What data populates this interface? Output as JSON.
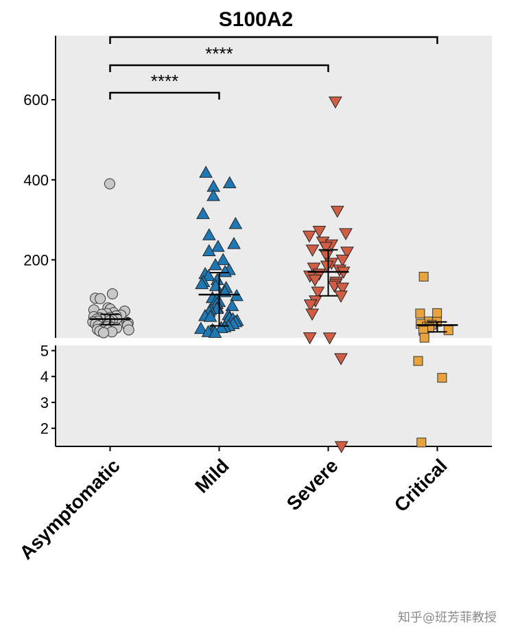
{
  "watermark": "知乎@班芳菲教授",
  "chart_data": {
    "type": "scatter",
    "title": "S100A2",
    "xlabel": "",
    "ylabel": "",
    "categories": [
      "Asymptomatic",
      "Mild",
      "Severe",
      "Critical"
    ],
    "y_axis": {
      "broken": true,
      "lower_segment": {
        "ylim": [
          1.3,
          5.2
        ],
        "ticks": [
          2,
          3,
          4,
          5
        ]
      },
      "upper_segment": {
        "ylim": [
          5,
          760
        ],
        "ticks": [
          200,
          400,
          600
        ]
      }
    },
    "grid": false,
    "colors": {
      "panel_background": "#EBEBEB",
      "asymptomatic": "#C8C8C8",
      "mild": "#1F78B4",
      "severe": "#D05E45",
      "critical": "#E8A33D"
    },
    "series": [
      {
        "name": "Asymptomatic",
        "marker": "circle",
        "mean": 52,
        "error_low": 38,
        "error_high": 64,
        "values": [
          390,
          115,
          104,
          103,
          80,
          77,
          75,
          72,
          68,
          66,
          64,
          62,
          60,
          58,
          56,
          55,
          53,
          52,
          50,
          48,
          47,
          45,
          44,
          42,
          40,
          38,
          36,
          35,
          33,
          31,
          30,
          28,
          26,
          25,
          24,
          22,
          20,
          18
        ]
      },
      {
        "name": "Mild",
        "marker": "triangle-up",
        "mean": 113,
        "error_low": 35,
        "error_high": 168,
        "values": [
          418,
          392,
          383,
          360,
          315,
          290,
          262,
          240,
          233,
          222,
          200,
          187,
          175,
          170,
          165,
          160,
          150,
          145,
          140,
          135,
          130,
          120,
          110,
          105,
          100,
          95,
          90,
          85,
          80,
          78,
          75,
          70,
          62,
          60,
          58,
          55,
          52,
          48,
          45,
          40,
          35,
          32,
          30,
          28,
          25,
          22,
          20,
          18
        ]
      },
      {
        "name": "Severe",
        "marker": "triangle-down",
        "mean": 170,
        "error_low": 110,
        "error_high": 225,
        "values": [
          595,
          322,
          272,
          266,
          260,
          245,
          238,
          232,
          225,
          220,
          210,
          200,
          192,
          185,
          180,
          175,
          170,
          165,
          160,
          150,
          145,
          140,
          135,
          130,
          120,
          110,
          98,
          88,
          65,
          5.8,
          5.4,
          4.7,
          1.3
        ]
      },
      {
        "name": "Critical",
        "marker": "square",
        "mean": 37,
        "error_low": 20,
        "error_high": 45,
        "values": [
          158,
          67,
          66,
          46,
          45,
          40,
          38,
          33,
          30,
          24,
          23,
          5.4,
          4.6,
          3.95,
          1.45
        ]
      }
    ],
    "annotations": [
      {
        "from": "Asymptomatic",
        "to": "Mild",
        "label": "****"
      },
      {
        "from": "Asymptomatic",
        "to": "Severe",
        "label": "****"
      },
      {
        "from": "Asymptomatic",
        "to": "Critical",
        "label": ""
      }
    ]
  }
}
